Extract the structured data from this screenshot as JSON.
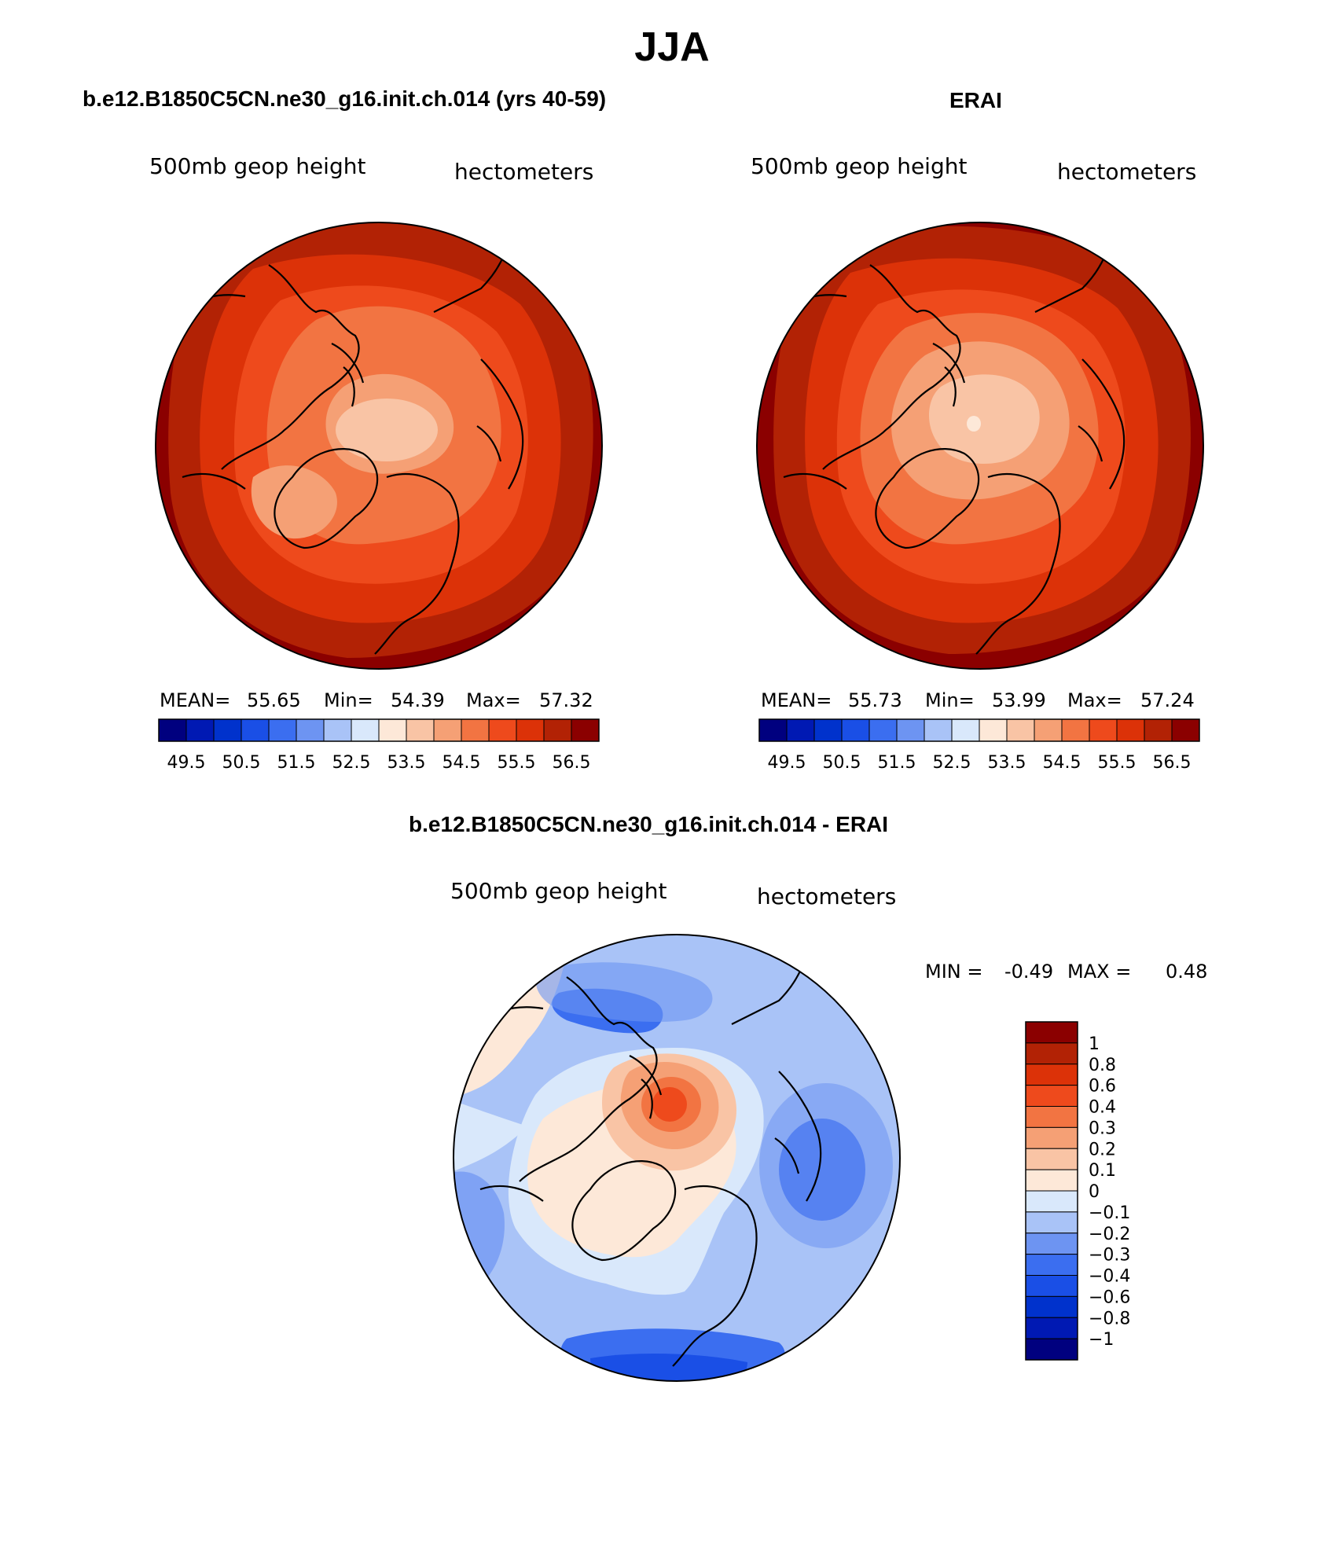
{
  "title": "JJA",
  "panels": [
    {
      "title": "b.e12.B1850C5CN.ne30_g16.init.ch.014 (yrs 40-59)",
      "variable": "500mb geop height",
      "units": "hectometers",
      "stats": {
        "mean_label": "MEAN=",
        "mean": "55.65",
        "min_label": "Min=",
        "min": "54.39",
        "max_label": "Max=",
        "max": "57.32"
      }
    },
    {
      "title": "ERAI",
      "variable": "500mb geop height",
      "units": "hectometers",
      "stats": {
        "mean_label": "MEAN=",
        "mean": "55.73",
        "min_label": "Min=",
        "min": "53.99",
        "max_label": "Max=",
        "max": "57.24"
      }
    },
    {
      "title": "b.e12.B1850C5CN.ne30_g16.init.ch.014 - ERAI",
      "variable": "500mb geop height",
      "units": "hectometers",
      "stats": {
        "min_label": "MIN =",
        "min": "-0.49",
        "max_label": "MAX =",
        "max": "0.48"
      }
    }
  ],
  "colorbar_top": {
    "colors": [
      "#00007f",
      "#0019b3",
      "#0032cc",
      "#1a4fe6",
      "#3b6ef0",
      "#6d94f2",
      "#a9c3f7",
      "#d9e8fb",
      "#fde8d8",
      "#f9c4a5",
      "#f5a075",
      "#f27442",
      "#ee4a1c",
      "#dc3208",
      "#b22205",
      "#8b0000"
    ],
    "tick_labels": [
      "49.5",
      "50.5",
      "51.5",
      "52.5",
      "53.5",
      "54.5",
      "55.5",
      "56.5"
    ]
  },
  "colorbar_diff": {
    "colors": [
      "#00007f",
      "#0019b3",
      "#0032cc",
      "#1a4fe6",
      "#3b6ef0",
      "#6d94f2",
      "#a9c3f7",
      "#d9e8fb",
      "#fde8d8",
      "#f9c4a5",
      "#f5a075",
      "#f27442",
      "#ee4a1c",
      "#dc3208",
      "#b22205",
      "#8b0000"
    ],
    "labels": [
      "1",
      "0.8",
      "0.6",
      "0.4",
      "0.3",
      "0.2",
      "0.1",
      "0",
      "−0.1",
      "−0.2",
      "−0.3",
      "−0.4",
      "−0.6",
      "−0.8",
      "−1"
    ]
  },
  "colors": {
    "map_outline": "#000000",
    "coastline": "#000000"
  }
}
